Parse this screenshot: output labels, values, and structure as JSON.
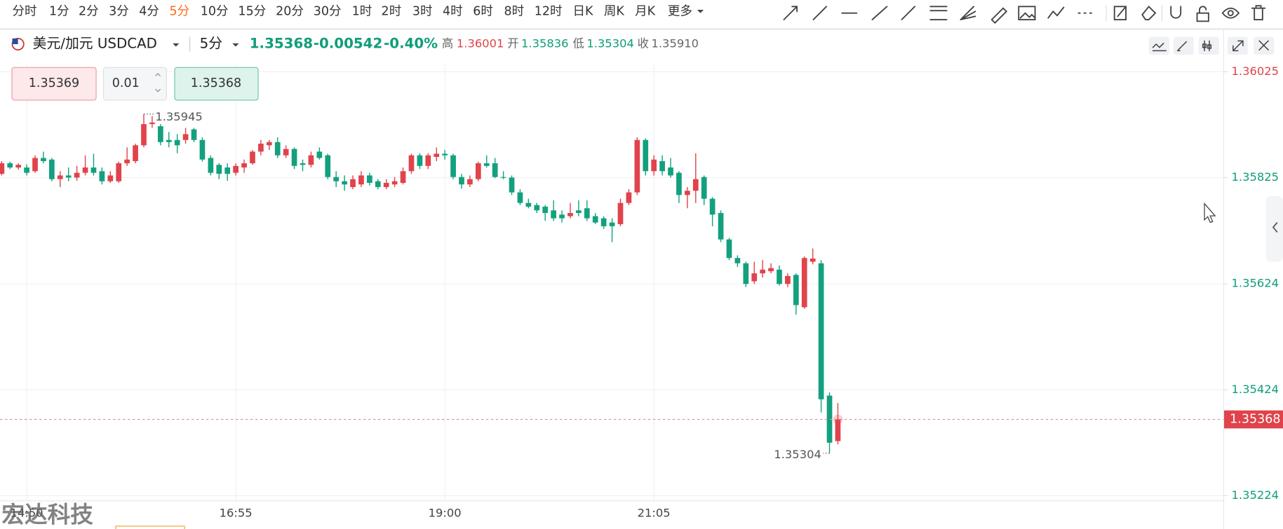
{
  "toolbar": {
    "intervals": [
      "分时",
      "1分",
      "2分",
      "3分",
      "4分",
      "5分",
      "10分",
      "15分",
      "20分",
      "30分",
      "1时",
      "2时",
      "3时",
      "4时",
      "6时",
      "8时",
      "12时",
      "日K",
      "周K",
      "月K",
      "更多"
    ],
    "active": 5
  },
  "symbol": {
    "name": "美元/加元 USDCAD",
    "interval": "5分",
    "price": "1.35368",
    "change": "-0.00542",
    "change_pct": "-0.40%",
    "high_label": "高",
    "high": "1.36001",
    "open_label": "开",
    "open": "1.35836",
    "low_label": "低",
    "low": "1.35304",
    "close_label": "收",
    "close": "1.35910"
  },
  "order": {
    "sell": "1.35369",
    "qty": "0.01",
    "buy": "1.35368"
  },
  "watermark": "宏达科技",
  "chart_data": {
    "type": "candlestick",
    "up_color": "#e0434b",
    "down_color": "#13a07e",
    "grid": true,
    "ylim": [
      1.35215,
      1.3604
    ],
    "yticks": [
      1.36025,
      1.35825,
      1.35624,
      1.35424,
      1.35224
    ],
    "xticks": [
      {
        "value": 3,
        "label": "14:50"
      },
      {
        "value": 28,
        "label": "16:55"
      },
      {
        "value": 53,
        "label": "19:00"
      },
      {
        "value": 78,
        "label": "21:05"
      }
    ],
    "candles": [
      [
        1.35832,
        1.35856,
        1.35829,
        1.35852
      ],
      [
        1.35852,
        1.35855,
        1.35841,
        1.35844
      ],
      [
        1.35844,
        1.35852,
        1.3584,
        1.35849
      ],
      [
        1.35844,
        1.3585,
        1.35829,
        1.35834
      ],
      [
        1.35837,
        1.35867,
        1.35834,
        1.35862
      ],
      [
        1.35862,
        1.35874,
        1.35852,
        1.35856
      ],
      [
        1.35859,
        1.35862,
        1.35818,
        1.35822
      ],
      [
        1.35822,
        1.35837,
        1.35807,
        1.35829
      ],
      [
        1.35829,
        1.35844,
        1.35818,
        1.35825
      ],
      [
        1.35825,
        1.35847,
        1.35819,
        1.35834
      ],
      [
        1.35834,
        1.35867,
        1.35829,
        1.35844
      ],
      [
        1.35844,
        1.3587,
        1.35829,
        1.35834
      ],
      [
        1.35837,
        1.35844,
        1.35812,
        1.35818
      ],
      [
        1.35818,
        1.35837,
        1.35815,
        1.35829
      ],
      [
        1.35818,
        1.35855,
        1.35815,
        1.35852
      ],
      [
        1.35852,
        1.35882,
        1.35847,
        1.35859
      ],
      [
        1.35856,
        1.35889,
        1.35852,
        1.35886
      ],
      [
        1.35886,
        1.35945,
        1.35882,
        1.35926
      ],
      [
        1.35926,
        1.35941,
        1.35919,
        1.35929
      ],
      [
        1.35922,
        1.35926,
        1.35886,
        1.35892
      ],
      [
        1.35896,
        1.35911,
        1.35882,
        1.35892
      ],
      [
        1.35896,
        1.35907,
        1.35871,
        1.35886
      ],
      [
        1.35896,
        1.35919,
        1.35889,
        1.35907
      ],
      [
        1.35916,
        1.35919,
        1.35892,
        1.35896
      ],
      [
        1.35896,
        1.35901,
        1.35855,
        1.35859
      ],
      [
        1.35862,
        1.35867,
        1.35829,
        1.35834
      ],
      [
        1.35849,
        1.35852,
        1.35822,
        1.35832
      ],
      [
        1.35844,
        1.35852,
        1.35819,
        1.35832
      ],
      [
        1.35834,
        1.35852,
        1.35829,
        1.35847
      ],
      [
        1.35844,
        1.35859,
        1.35834,
        1.35852
      ],
      [
        1.35852,
        1.35877,
        1.35849,
        1.35874
      ],
      [
        1.35874,
        1.35896,
        1.35867,
        1.35889
      ],
      [
        1.35886,
        1.35896,
        1.35877,
        1.35892
      ],
      [
        1.35892,
        1.35901,
        1.35862,
        1.35867
      ],
      [
        1.35867,
        1.35886,
        1.35862,
        1.35879
      ],
      [
        1.35879,
        1.35882,
        1.35841,
        1.35847
      ],
      [
        1.35852,
        1.35859,
        1.35837,
        1.35849
      ],
      [
        1.35849,
        1.35874,
        1.35844,
        1.35867
      ],
      [
        1.35874,
        1.35882,
        1.35859,
        1.35862
      ],
      [
        1.35867,
        1.3587,
        1.35822,
        1.35826
      ],
      [
        1.35826,
        1.35837,
        1.35807,
        1.35818
      ],
      [
        1.35818,
        1.35829,
        1.358,
        1.35812
      ],
      [
        1.35807,
        1.35829,
        1.35803,
        1.35822
      ],
      [
        1.35812,
        1.35837,
        1.35807,
        1.35829
      ],
      [
        1.35829,
        1.35834,
        1.3581,
        1.35815
      ],
      [
        1.35818,
        1.35822,
        1.35803,
        1.35807
      ],
      [
        1.35807,
        1.35822,
        1.35803,
        1.35815
      ],
      [
        1.35812,
        1.35826,
        1.35807,
        1.35818
      ],
      [
        1.35815,
        1.35844,
        1.35812,
        1.35837
      ],
      [
        1.35837,
        1.3587,
        1.35832,
        1.35867
      ],
      [
        1.35867,
        1.35871,
        1.35841,
        1.35847
      ],
      [
        1.35847,
        1.35871,
        1.35841,
        1.35867
      ],
      [
        1.35864,
        1.35882,
        1.35856,
        1.3587
      ],
      [
        1.3587,
        1.35877,
        1.35859,
        1.35867
      ],
      [
        1.35867,
        1.3587,
        1.35822,
        1.35826
      ],
      [
        1.35826,
        1.35832,
        1.35804,
        1.35812
      ],
      [
        1.35812,
        1.35829,
        1.35807,
        1.35822
      ],
      [
        1.35822,
        1.35855,
        1.35818,
        1.35852
      ],
      [
        1.35852,
        1.35867,
        1.35844,
        1.35847
      ],
      [
        1.35852,
        1.35862,
        1.35824,
        1.35826
      ],
      [
        1.35826,
        1.35837,
        1.35822,
        1.35825
      ],
      [
        1.35825,
        1.35829,
        1.35792,
        1.35797
      ],
      [
        1.35797,
        1.35803,
        1.35773,
        1.35777
      ],
      [
        1.35777,
        1.35785,
        1.35767,
        1.3577
      ],
      [
        1.35773,
        1.35777,
        1.35758,
        1.35763
      ],
      [
        1.3577,
        1.35773,
        1.35743,
        1.35758
      ],
      [
        1.35763,
        1.35782,
        1.35743,
        1.35748
      ],
      [
        1.35755,
        1.35763,
        1.3574,
        1.35748
      ],
      [
        1.35752,
        1.35777,
        1.35748,
        1.35758
      ],
      [
        1.35763,
        1.35782,
        1.35752,
        1.35758
      ],
      [
        1.35767,
        1.35782,
        1.35743,
        1.35748
      ],
      [
        1.35752,
        1.35758,
        1.35737,
        1.3574
      ],
      [
        1.35748,
        1.35752,
        1.35728,
        1.35733
      ],
      [
        1.3574,
        1.35748,
        1.35703,
        1.35733
      ],
      [
        1.35737,
        1.35785,
        1.35733,
        1.35777
      ],
      [
        1.35777,
        1.35803,
        1.35773,
        1.35797
      ],
      [
        1.35797,
        1.35901,
        1.35792,
        1.35896
      ],
      [
        1.35896,
        1.35899,
        1.35829,
        1.35837
      ],
      [
        1.35837,
        1.35867,
        1.35829,
        1.35859
      ],
      [
        1.35856,
        1.35867,
        1.35829,
        1.35837
      ],
      [
        1.35844,
        1.35862,
        1.35825,
        1.35829
      ],
      [
        1.35834,
        1.35837,
        1.35777,
        1.35792
      ],
      [
        1.35792,
        1.35807,
        1.35767,
        1.358
      ],
      [
        1.358,
        1.35871,
        1.35777,
        1.35822
      ],
      [
        1.35826,
        1.35829,
        1.35773,
        1.35785
      ],
      [
        1.35785,
        1.35788,
        1.35733,
        1.35755
      ],
      [
        1.35758,
        1.35763,
        1.35703,
        1.35708
      ],
      [
        1.35708,
        1.35711,
        1.35669,
        1.35673
      ],
      [
        1.35673,
        1.35678,
        1.35656,
        1.35663
      ],
      [
        1.35663,
        1.35666,
        1.35618,
        1.35624
      ],
      [
        1.35629,
        1.35666,
        1.35624,
        1.35644
      ],
      [
        1.35644,
        1.35669,
        1.35636,
        1.35651
      ],
      [
        1.35648,
        1.35663,
        1.35644,
        1.35654
      ],
      [
        1.35651,
        1.35659,
        1.35621,
        1.35624
      ],
      [
        1.35624,
        1.35644,
        1.35618,
        1.35639
      ],
      [
        1.35641,
        1.35644,
        1.35566,
        1.35584
      ],
      [
        1.3558,
        1.35676,
        1.35577,
        1.35673
      ],
      [
        1.35666,
        1.35691,
        1.35661,
        1.35672
      ],
      [
        1.35663,
        1.35669,
        1.35381,
        1.35406
      ],
      [
        1.35413,
        1.35419,
        1.35304,
        1.35324
      ],
      [
        1.35327,
        1.35399,
        1.35321,
        1.35368
      ]
    ]
  }
}
